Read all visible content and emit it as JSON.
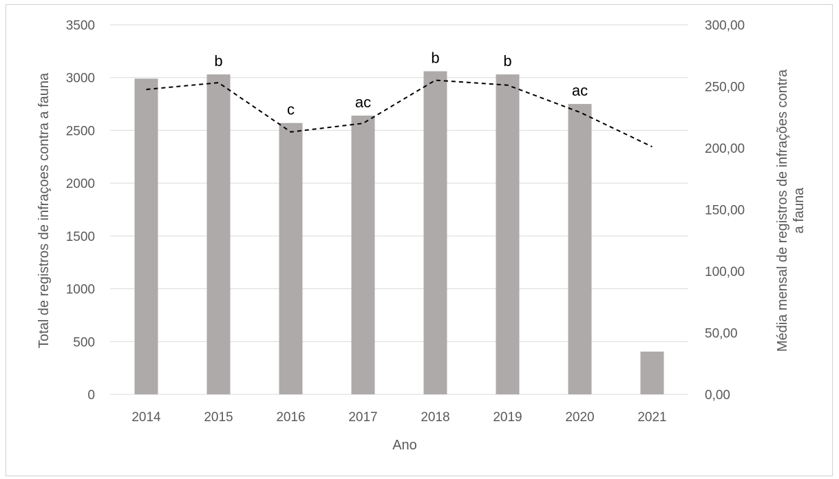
{
  "chart_data": {
    "type": "bar",
    "categories": [
      "2014",
      "2015",
      "2016",
      "2017",
      "2018",
      "2019",
      "2020",
      "2021"
    ],
    "series": [
      {
        "axis": "left",
        "kind": "bar",
        "color": "#aeaaaa",
        "values": [
          2990,
          3030,
          2570,
          2640,
          3060,
          3030,
          2750,
          405
        ]
      },
      {
        "axis": "right",
        "kind": "line",
        "style": "dashed",
        "color": "#000000",
        "values": [
          247.5,
          253,
          213,
          220,
          255,
          251,
          229,
          201
        ]
      }
    ],
    "bar_labels": [
      "",
      "b",
      "c",
      "ac",
      "b",
      "b",
      "ac",
      ""
    ],
    "xlabel": "Ano",
    "ylabel": "Total de registros de infraçoes contra a fauna",
    "y2label_lines": [
      "Média mensal de registros de infrações contra",
      "a fauna"
    ],
    "ylim": [
      0,
      3500
    ],
    "yticks": [
      "0",
      "500",
      "1000",
      "1500",
      "2000",
      "2500",
      "3000",
      "3500"
    ],
    "y2lim": [
      0,
      300
    ],
    "y2ticks": [
      "0,00",
      "50,00",
      "100,00",
      "150,00",
      "200,00",
      "250,00",
      "300,00"
    ],
    "grid": true,
    "gridcolor": "#d9d9d9"
  }
}
